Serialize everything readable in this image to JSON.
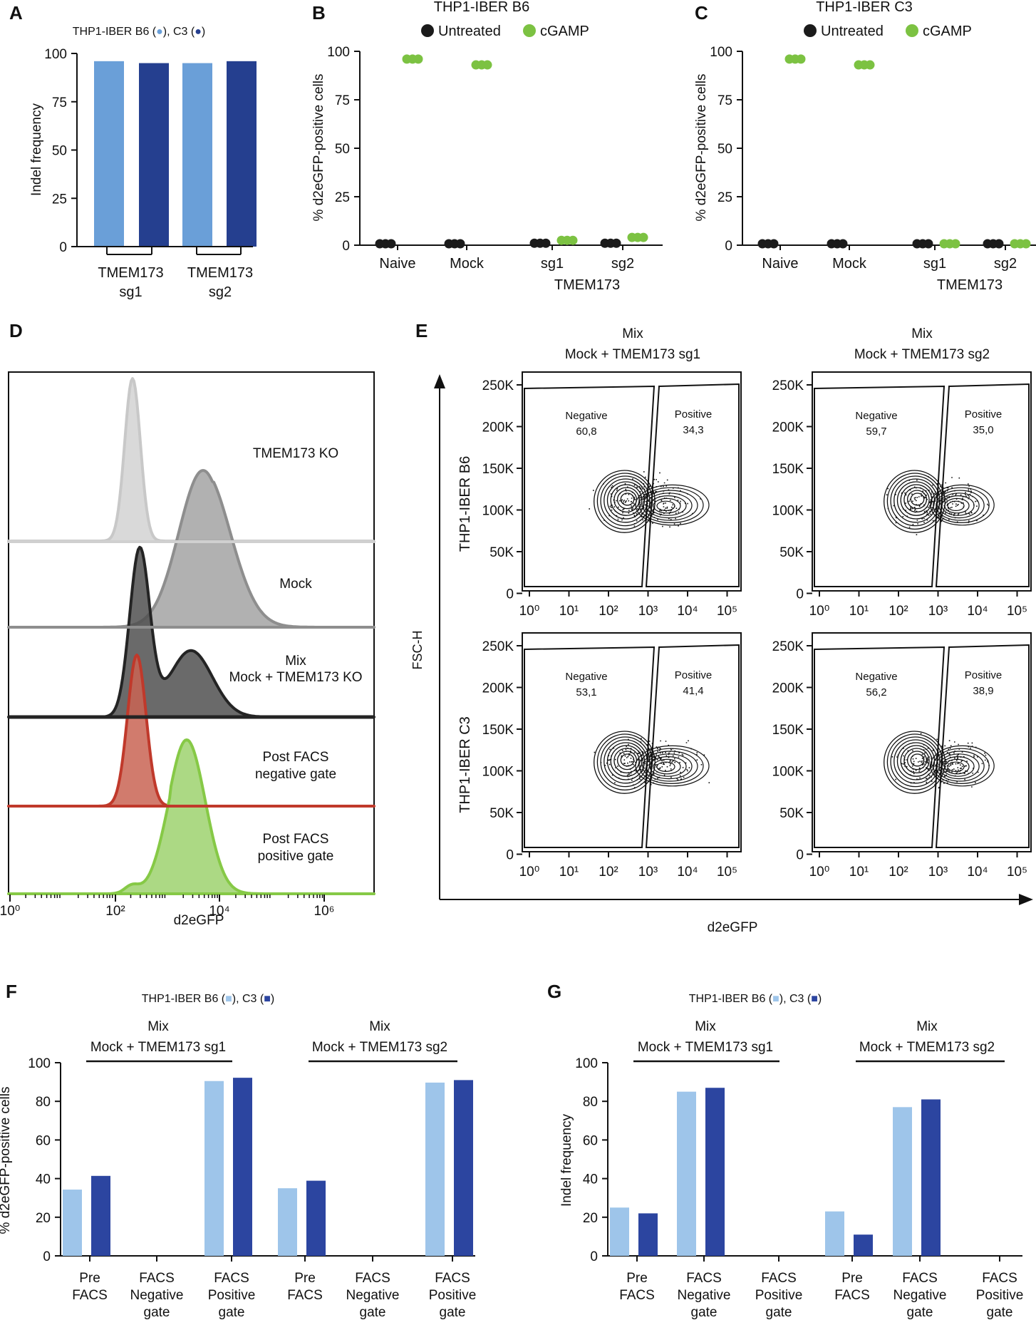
{
  "colors": {
    "b6": "#6a9fd8",
    "c3": "#253f8f",
    "b6_light": "#9ec5ea",
    "c3_dark": "#2c45a0",
    "untreated": "#1b1b1b",
    "cgamp": "#7cc242",
    "ko": "#d2d2d2",
    "mock": "#8e8e8e",
    "mix": "#242424",
    "neg": "#c0392b",
    "pos": "#8fd15a"
  },
  "panels": {
    "A": {
      "label": "A",
      "legend": {
        "prefix": "THP1-IBER B6 (",
        "mid": "), C3 (",
        "suffix": ")"
      }
    },
    "B": {
      "label": "B",
      "title": "THP1-IBER B6",
      "legend": [
        "Untreated",
        "cGAMP"
      ]
    },
    "C": {
      "label": "C",
      "title": "THP1-IBER C3",
      "legend": [
        "Untreated",
        "cGAMP"
      ]
    },
    "D": {
      "label": "D",
      "xlabel": "d2eGFP",
      "xticks": [
        "10⁰",
        "10²",
        "10⁴",
        "10⁶"
      ],
      "tracks": [
        "TMEM173 KO",
        "Mock",
        "Mix",
        "Mock + TMEM173 KO",
        "Post FACS",
        "negative gate",
        "Post FACS",
        "positive gate"
      ]
    },
    "E": {
      "label": "E",
      "ylabel": "FSC-H",
      "xlabel": "d2eGFP",
      "col_titles": [
        [
          "Mix",
          "Mock + TMEM173 sg1"
        ],
        [
          "Mix",
          "Mock + TMEM173 sg2"
        ]
      ],
      "row_labels": [
        "THP1-IBER B6",
        "THP1-IBER C3"
      ],
      "gate_neg": "Negative",
      "gate_pos": "Positive",
      "yticks": [
        "250K",
        "200K",
        "150K",
        "100K",
        "50K",
        "0"
      ],
      "xticks": [
        "10⁰",
        "10¹",
        "10²",
        "10³",
        "10⁴",
        "10⁵"
      ],
      "values": [
        [
          "60,8",
          "34,3",
          "59,7",
          "35,0"
        ],
        [
          "53,1",
          "41,4",
          "56,2",
          "38,9"
        ]
      ]
    },
    "F": {
      "label": "F",
      "legend": {
        "prefix": "THP1-IBER B6 (",
        "mid": "), C3 (",
        "suffix": ")"
      }
    },
    "G": {
      "label": "G",
      "legend": {
        "prefix": "THP1-IBER B6 (",
        "mid": "), C3 (",
        "suffix": ")"
      }
    }
  },
  "chart_data": [
    {
      "panel": "A",
      "type": "bar",
      "ylabel": "Indel frequency",
      "ylim": [
        0,
        100
      ],
      "yticks": [
        0,
        25,
        50,
        75,
        100
      ],
      "group_labels": [
        [
          "TMEM173",
          "sg1"
        ],
        [
          "TMEM173",
          "sg2"
        ]
      ],
      "series": [
        {
          "name": "B6",
          "values": [
            96,
            95
          ]
        },
        {
          "name": "C3",
          "values": [
            95,
            96
          ]
        }
      ]
    },
    {
      "panel": "B",
      "type": "scatter",
      "title": "THP1-IBER B6",
      "ylabel": "% d2eGFP-positive cells",
      "ylim": [
        0,
        100
      ],
      "yticks": [
        0,
        25,
        50,
        75,
        100
      ],
      "categories": [
        "Naive",
        "Mock",
        "sg1",
        "sg2"
      ],
      "group_label": "TMEM173",
      "series": [
        {
          "name": "Untreated",
          "values": [
            0.5,
            0.5,
            1,
            1
          ]
        },
        {
          "name": "cGAMP",
          "values": [
            96,
            93,
            2.5,
            4
          ]
        }
      ]
    },
    {
      "panel": "C",
      "type": "scatter",
      "title": "THP1-IBER C3",
      "ylabel": "% d2eGFP-positive cells",
      "ylim": [
        0,
        100
      ],
      "yticks": [
        0,
        25,
        50,
        75,
        100
      ],
      "categories": [
        "Naive",
        "Mock",
        "sg1",
        "sg2"
      ],
      "group_label": "TMEM173",
      "series": [
        {
          "name": "Untreated",
          "values": [
            0.5,
            0.5,
            0.5,
            0.5
          ]
        },
        {
          "name": "cGAMP",
          "values": [
            96,
            93,
            0.5,
            0.5
          ]
        }
      ]
    },
    {
      "panel": "F",
      "type": "bar",
      "ylabel": "% d2eGFP-positive cells",
      "ylim": [
        0,
        100
      ],
      "yticks": [
        0,
        20,
        40,
        60,
        80,
        100
      ],
      "group_titles": [
        [
          "Mix",
          "Mock + TMEM173 sg1"
        ],
        [
          "Mix",
          "Mock + TMEM173 sg2"
        ]
      ],
      "categories": [
        [
          "Pre",
          "FACS"
        ],
        [
          "FACS",
          "Negative",
          "gate"
        ],
        [
          "FACS",
          "Positive",
          "gate"
        ],
        [
          "Pre",
          "FACS"
        ],
        [
          "FACS",
          "Negative",
          "gate"
        ],
        [
          "FACS",
          "Positive",
          "gate"
        ]
      ],
      "series": [
        {
          "name": "B6",
          "values": [
            34.3,
            0,
            90.5,
            35.0,
            0,
            89.7
          ]
        },
        {
          "name": "C3",
          "values": [
            41.4,
            0,
            92.2,
            38.9,
            0,
            91.0
          ]
        }
      ]
    },
    {
      "panel": "G",
      "type": "bar",
      "ylabel": "Indel frequency",
      "ylim": [
        0,
        100
      ],
      "yticks": [
        0,
        20,
        40,
        60,
        80,
        100
      ],
      "group_titles": [
        [
          "Mix",
          "Mock + TMEM173 sg1"
        ],
        [
          "Mix",
          "Mock + TMEM173 sg2"
        ]
      ],
      "categories": [
        [
          "Pre",
          "FACS"
        ],
        [
          "FACS",
          "Negative",
          "gate"
        ],
        [
          "FACS",
          "Positive",
          "gate"
        ],
        [
          "Pre",
          "FACS"
        ],
        [
          "FACS",
          "Negative",
          "gate"
        ],
        [
          "FACS",
          "Positive",
          "gate"
        ]
      ],
      "series": [
        {
          "name": "B6",
          "values": [
            25,
            85,
            0,
            23,
            77,
            0
          ]
        },
        {
          "name": "C3",
          "values": [
            22,
            87,
            0,
            11,
            81,
            0
          ]
        }
      ]
    }
  ]
}
